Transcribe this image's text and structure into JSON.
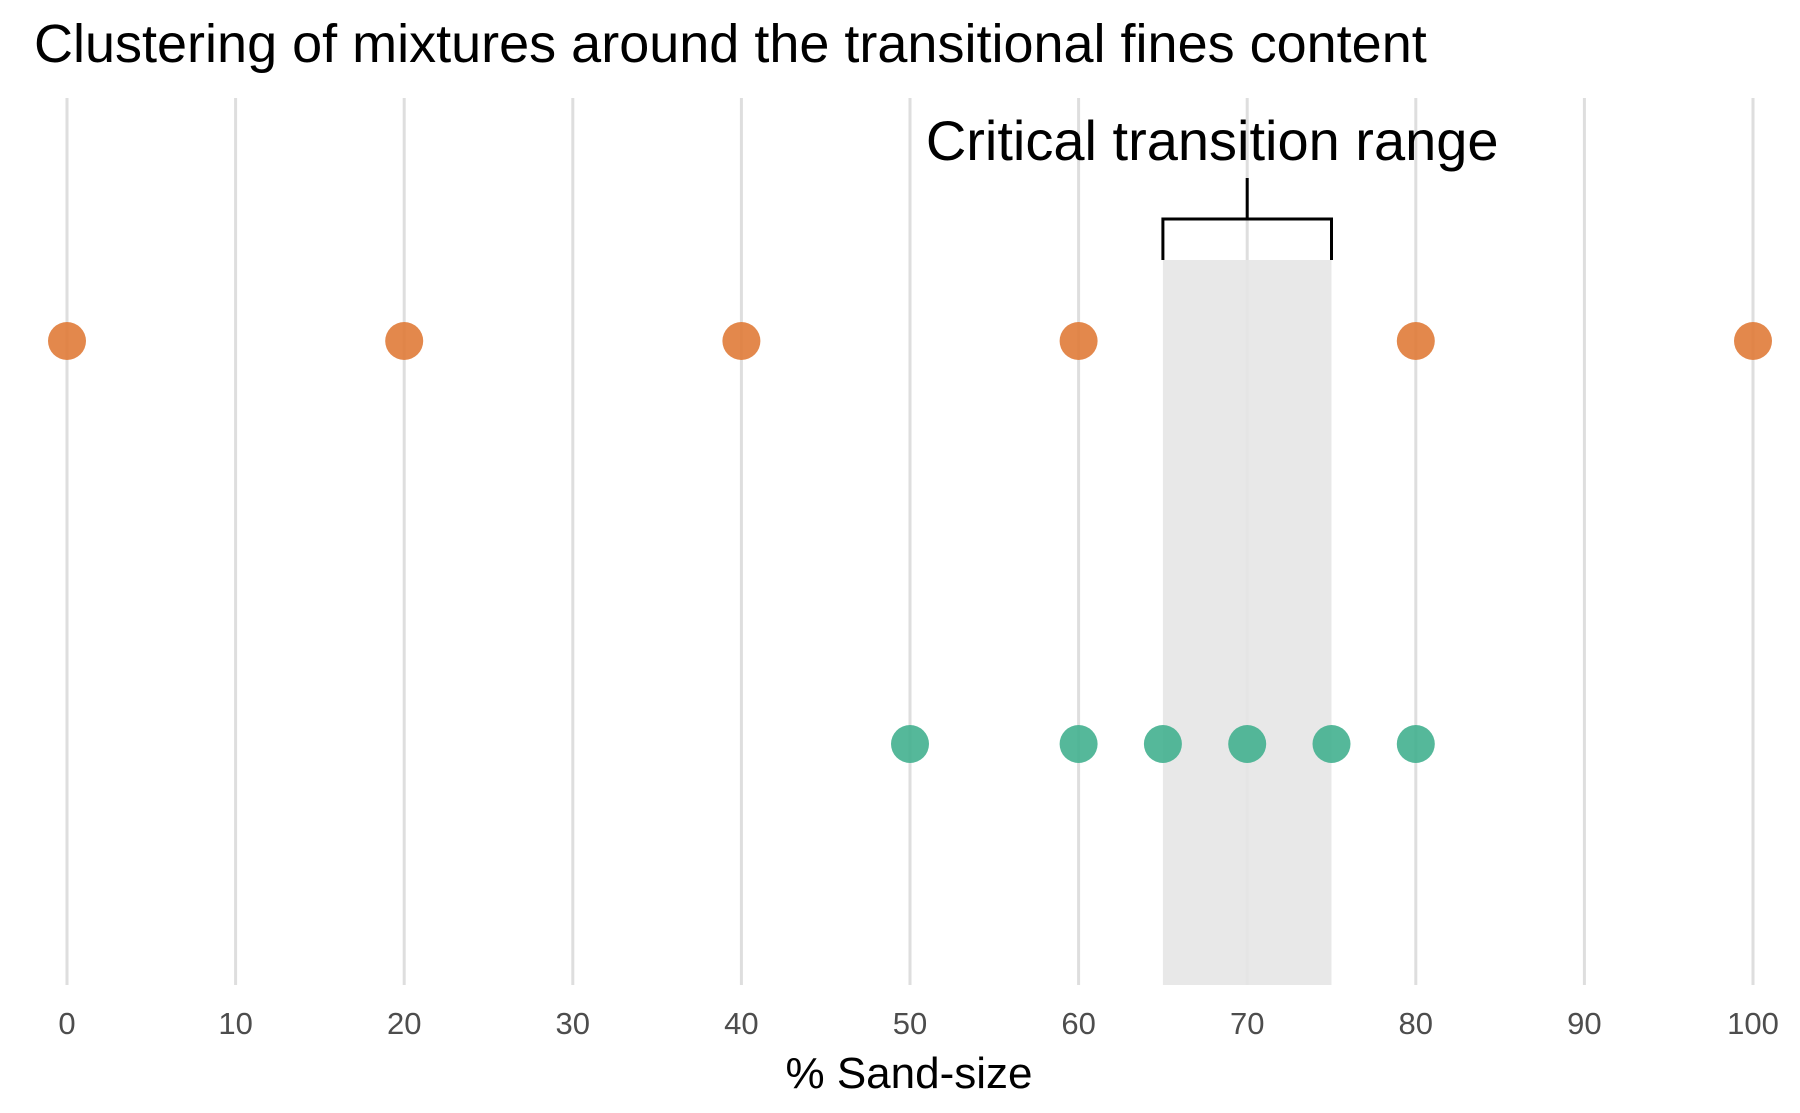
{
  "chart_data": {
    "type": "scatter",
    "title": "Clustering of mixtures around the transitional fines content",
    "xlabel": "% Sand-size",
    "ylabel": "",
    "xlim": [
      0,
      100
    ],
    "x_ticks": [
      "0",
      "10",
      "20",
      "30",
      "40",
      "50",
      "60",
      "70",
      "80",
      "90",
      "100"
    ],
    "grid": "vertical major and minor lines",
    "legend": "none",
    "series": [
      {
        "color": "#e07b39",
        "row": "upper",
        "x": [
          0,
          20,
          40,
          60,
          80,
          100
        ]
      },
      {
        "color": "#43b08f",
        "row": "lower",
        "x": [
          50,
          60,
          65,
          70,
          75,
          80
        ]
      }
    ],
    "shaded_band": {
      "x": [
        65,
        75
      ],
      "color": "#e6e6e6"
    },
    "annotation": {
      "text": "Critical transition range",
      "x_range": [
        65,
        75
      ],
      "type": "bracket"
    }
  }
}
